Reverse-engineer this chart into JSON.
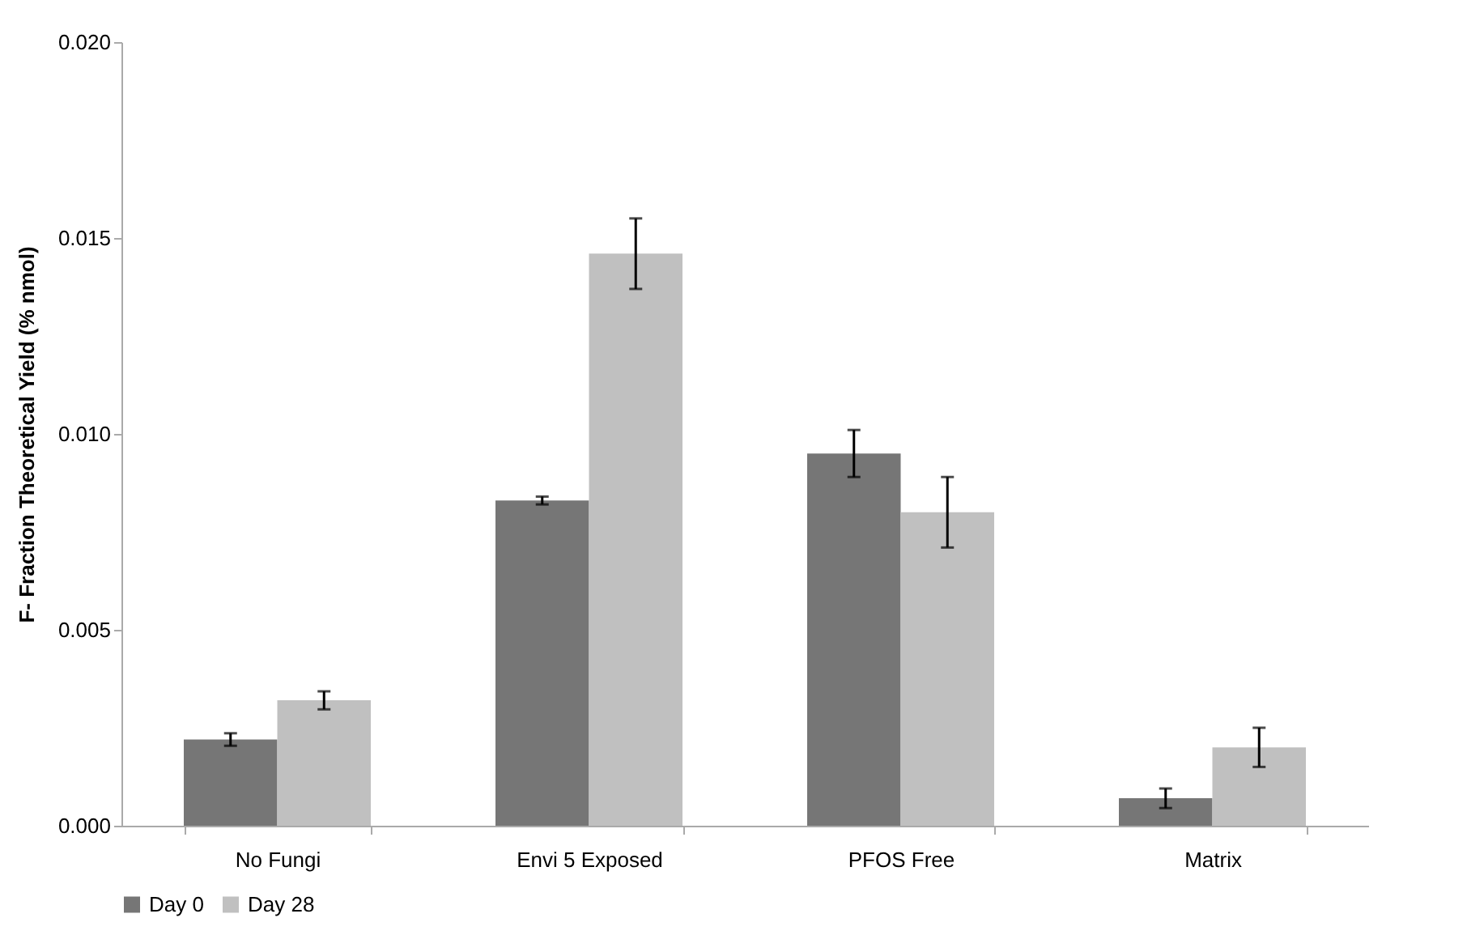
{
  "chart_data": {
    "type": "bar",
    "ylabel": "F- Fraction Theoretical Yield (% nmol)",
    "categories": [
      "No Fungi",
      "Envi 5 Exposed",
      "PFOS Free",
      "Matrix"
    ],
    "series": [
      {
        "name": "Day 0",
        "color": "#767676",
        "values": [
          0.0022,
          0.0083,
          0.0095,
          0.0007
        ],
        "errors": [
          0.00016,
          0.0001,
          0.0006,
          0.00025
        ]
      },
      {
        "name": "Day 28",
        "color": "#c0c0c0",
        "values": [
          0.0032,
          0.0146,
          0.008,
          0.002
        ],
        "errors": [
          0.00023,
          0.0009,
          0.0009,
          0.0005
        ]
      }
    ],
    "ylim": [
      0,
      0.02
    ],
    "yticks": [
      {
        "value": 0,
        "label": "0.000"
      },
      {
        "value": 0.005,
        "label": "0.005"
      },
      {
        "value": 0.01,
        "label": "0.010"
      },
      {
        "value": 0.015,
        "label": "0.015"
      },
      {
        "value": 0.02,
        "label": "0.020"
      }
    ],
    "grid": false,
    "legend": "bottom"
  }
}
